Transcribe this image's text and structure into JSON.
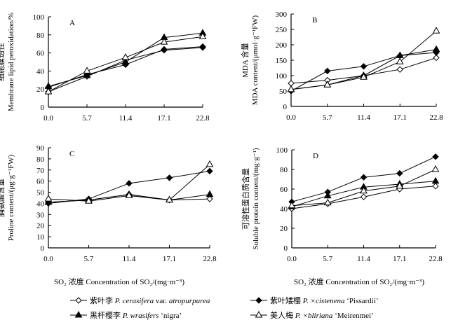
{
  "legend": [
    {
      "marker": "open-diamond",
      "cn": "紫叶李",
      "latin": "P. cerasifera",
      "mid": " var. ",
      "latin2": "atropurpurea",
      "cultivar": ""
    },
    {
      "marker": "filled-diamond",
      "cn": "紫叶矮樱",
      "latin": "P. ×cistenena",
      "mid": "",
      "latin2": "",
      "cultivar": "‘Pissardii’"
    },
    {
      "marker": "filled-triangle",
      "cn": "黑杆樱李",
      "latin": "P. wrasifers",
      "mid": "",
      "latin2": "",
      "cultivar": "‘nigra’"
    },
    {
      "marker": "open-triangle",
      "cn": "美人梅",
      "latin": "P. ×bliriana",
      "mid": "",
      "latin2": "",
      "cultivar": "‘Meirenmei’"
    }
  ],
  "xlabel": "SO₂ 浓度 Concentration of SO₂/(mg·m⁻³)",
  "chart_data": [
    {
      "type": "line",
      "panel": "A",
      "ylabel_cn": "细胞膜透性",
      "ylabel": "Membrane lipid peroxidation/%",
      "ylim": [
        0,
        100
      ],
      "yticks": [
        0,
        20,
        40,
        60,
        80,
        100
      ],
      "x": [
        0.0,
        5.7,
        11.4,
        17.1,
        22.8
      ],
      "xticks": [
        "0.0",
        "5.7",
        "11.4",
        "17.1",
        "22.8"
      ],
      "series": [
        {
          "name": "紫叶李",
          "values": [
            17,
            34,
            52,
            63,
            66
          ]
        },
        {
          "name": "紫叶矮樱",
          "values": [
            22,
            36,
            47,
            64,
            67
          ]
        },
        {
          "name": "黑杆樱李",
          "values": [
            23,
            35,
            50,
            77,
            82
          ]
        },
        {
          "name": "美人梅",
          "values": [
            17,
            40,
            55,
            72,
            78
          ]
        }
      ]
    },
    {
      "type": "line",
      "panel": "B",
      "ylabel_cn": "MDA 含量",
      "ylabel": "MDA content/(μmol·g⁻¹FW)",
      "ylim": [
        0,
        300
      ],
      "yticks": [
        0,
        50,
        100,
        150,
        200,
        250,
        300
      ],
      "x": [
        0.0,
        5.7,
        11.4,
        17.1,
        22.8
      ],
      "xticks": [
        "0.0",
        "5.7",
        "11.4",
        "17.1",
        "22.8"
      ],
      "series": [
        {
          "name": "紫叶李",
          "values": [
            75,
            85,
            100,
            120,
            158
          ]
        },
        {
          "name": "紫叶矮樱",
          "values": [
            50,
            115,
            130,
            165,
            175
          ]
        },
        {
          "name": "黑杆樱李",
          "values": [
            55,
            70,
            100,
            165,
            185
          ]
        },
        {
          "name": "美人梅",
          "values": [
            55,
            70,
            95,
            145,
            245
          ]
        }
      ]
    },
    {
      "type": "line",
      "panel": "C",
      "ylabel_cn": "脯氨酸含量",
      "ylabel": "Proline content/(μg·g⁻¹FW)",
      "ylim": [
        0,
        90
      ],
      "yticks": [
        0,
        10,
        20,
        30,
        40,
        50,
        60,
        70,
        80,
        90
      ],
      "x": [
        0.0,
        5.7,
        11.4,
        17.1,
        22.8
      ],
      "xticks": [
        "0.0",
        "5.7",
        "11.4",
        "17.1",
        "22.8"
      ],
      "series": [
        {
          "name": "紫叶李",
          "values": [
            41,
            43,
            48,
            43,
            44
          ]
        },
        {
          "name": "紫叶矮樱",
          "values": [
            40,
            44,
            58,
            63,
            69
          ]
        },
        {
          "name": "黑杆樱李",
          "values": [
            41,
            43,
            48,
            43,
            48
          ]
        },
        {
          "name": "美人梅",
          "values": [
            44,
            42,
            47,
            43,
            75
          ]
        }
      ]
    },
    {
      "type": "line",
      "panel": "D",
      "ylabel_cn": "可溶性蛋白质含量",
      "ylabel": "Soluble protein content/(mg·g⁻¹)",
      "ylim": [
        0,
        100
      ],
      "yticks": [
        0,
        20,
        40,
        60,
        80,
        100
      ],
      "x": [
        0.0,
        5.7,
        11.4,
        17.1,
        22.8
      ],
      "xticks": [
        "0.0",
        "5.7",
        "11.4",
        "17.1",
        "22.8"
      ],
      "series": [
        {
          "name": "紫叶李",
          "values": [
            40,
            45,
            52,
            60,
            63
          ]
        },
        {
          "name": "紫叶矮樱",
          "values": [
            47,
            57,
            72,
            76,
            93
          ]
        },
        {
          "name": "黑杆樱李",
          "values": [
            42,
            53,
            62,
            65,
            68
          ]
        },
        {
          "name": "美人梅",
          "values": [
            43,
            46,
            58,
            63,
            80
          ]
        }
      ]
    }
  ]
}
